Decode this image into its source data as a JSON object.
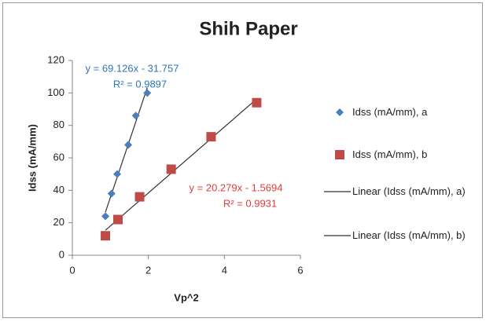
{
  "chart_data": {
    "type": "scatter",
    "title": "Shih Paper",
    "x_label": "Vp^2",
    "y_label": "Idss (mA/mm)",
    "xlim": [
      0,
      6
    ],
    "xticks": [
      0,
      2,
      4,
      6
    ],
    "ylim": [
      0,
      120
    ],
    "yticks": [
      0,
      20,
      40,
      60,
      80,
      100,
      120
    ],
    "series": [
      {
        "name": "Idss (mA/mm),  a",
        "color": "#4a7ebb",
        "marker": "diamond",
        "x": [
          0.87,
          1.03,
          1.18,
          1.47,
          1.67,
          1.97
        ],
        "values": [
          24,
          38,
          50,
          68,
          86,
          100
        ]
      },
      {
        "name": "Idss (mA/mm),  b",
        "color": "#be4b48",
        "marker": "square",
        "x": [
          0.87,
          1.2,
          1.77,
          2.6,
          3.65,
          4.85
        ],
        "values": [
          12,
          22,
          36,
          53,
          73,
          94
        ]
      }
    ],
    "trendlines": [
      {
        "name": "Linear (Idss (mA/mm),  a)",
        "color": "#333333",
        "label_color": "#2e75b6",
        "equation": "y = 69.126x - 31.757",
        "r2": "R² = 0.9897"
      },
      {
        "name": "Linear (Idss (mA/mm),  b)",
        "color": "#333333",
        "label_color": "#e03c3c",
        "equation": "y = 20.279x - 1.5694",
        "r2": "R² = 0.9931"
      }
    ]
  }
}
